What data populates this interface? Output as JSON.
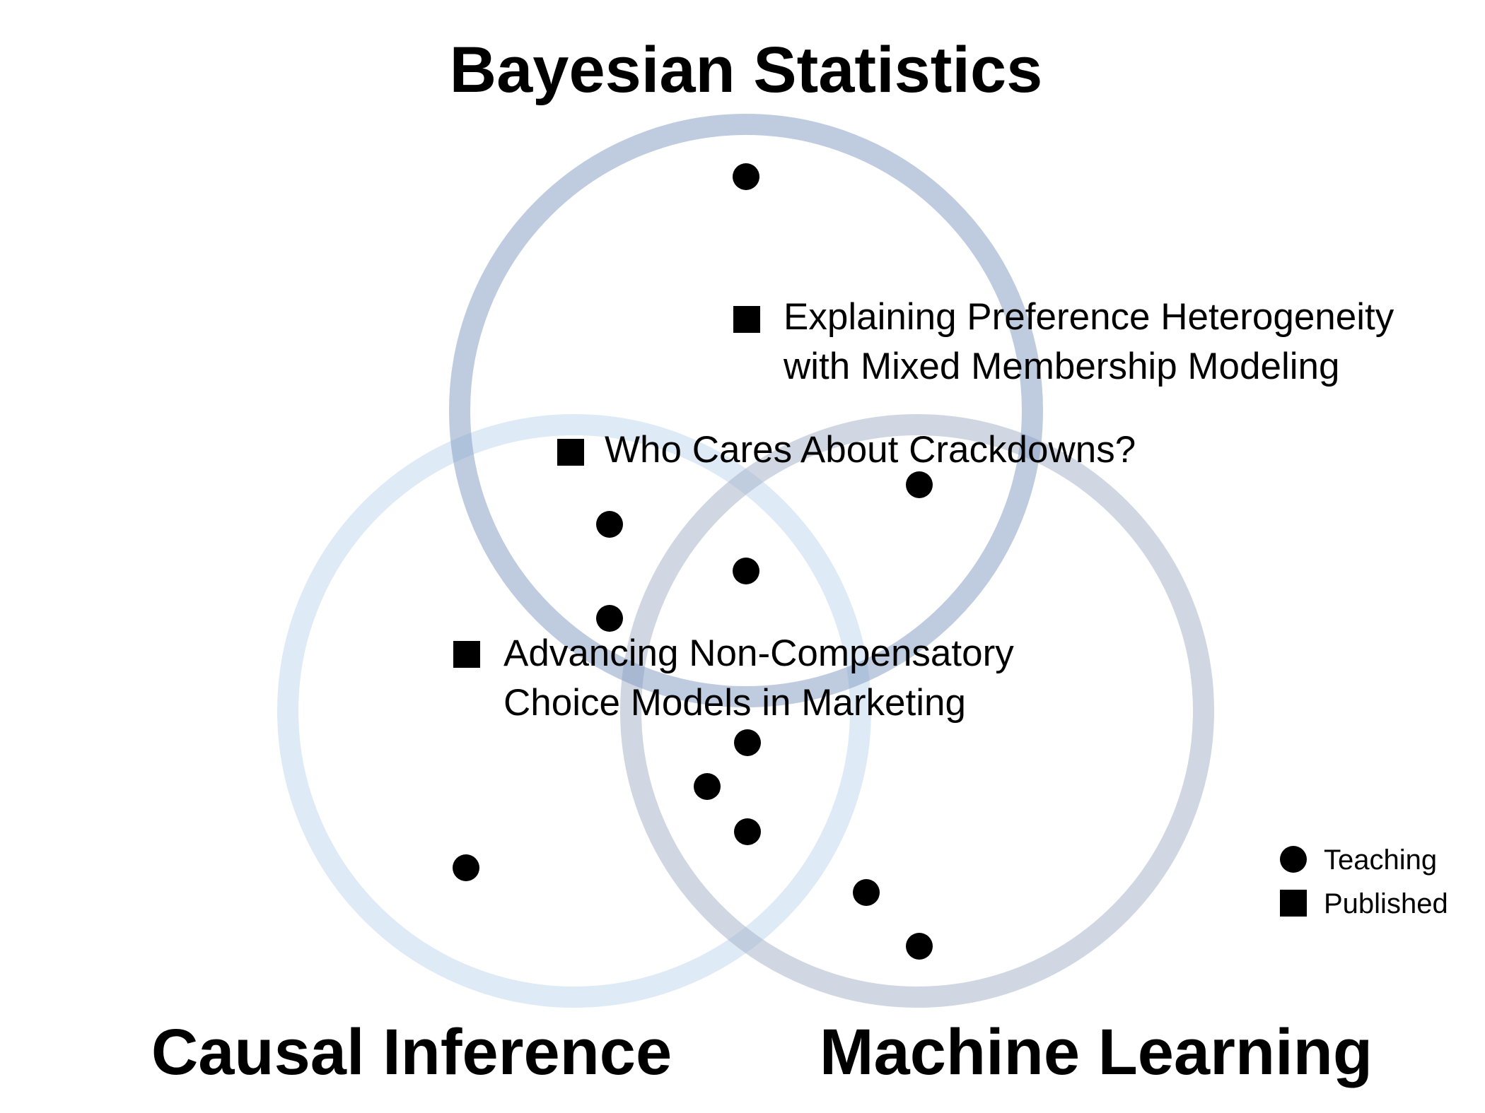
{
  "circles": [
    {
      "key": "bayes",
      "title": "Bayesian Statistics",
      "color": "#7f99c1"
    },
    {
      "key": "causal",
      "title": "Causal Inference",
      "color": "#bfd5ef"
    },
    {
      "key": "ml",
      "title": "Machine Learning",
      "color": "#a1b0c5"
    }
  ],
  "publications": [
    {
      "key": "preference",
      "lines": [
        "Explaining Preference Heterogeneity",
        "with Mixed Membership Modeling"
      ]
    },
    {
      "key": "crackdowns",
      "lines": [
        "Who Cares About Crackdowns?"
      ]
    },
    {
      "key": "noncomp",
      "lines": [
        "Advancing Non-Compensatory",
        "Choice Models in Marketing"
      ]
    }
  ],
  "legend": {
    "teaching": "Teaching",
    "published": "Published"
  },
  "colors": {
    "marker": "#000000",
    "background": "#ffffff"
  }
}
